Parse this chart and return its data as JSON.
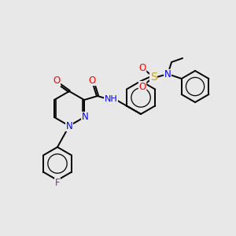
{
  "bg_color": "#e8e8e8",
  "bond_color": "#000000",
  "atom_colors": {
    "O": "#ff0000",
    "N": "#0000ff",
    "S": "#ccaa00",
    "F": "#cc00cc",
    "H": "#007070",
    "C": "#000000"
  },
  "font_size": 8.5,
  "lw": 1.4,
  "ring_r": 18
}
